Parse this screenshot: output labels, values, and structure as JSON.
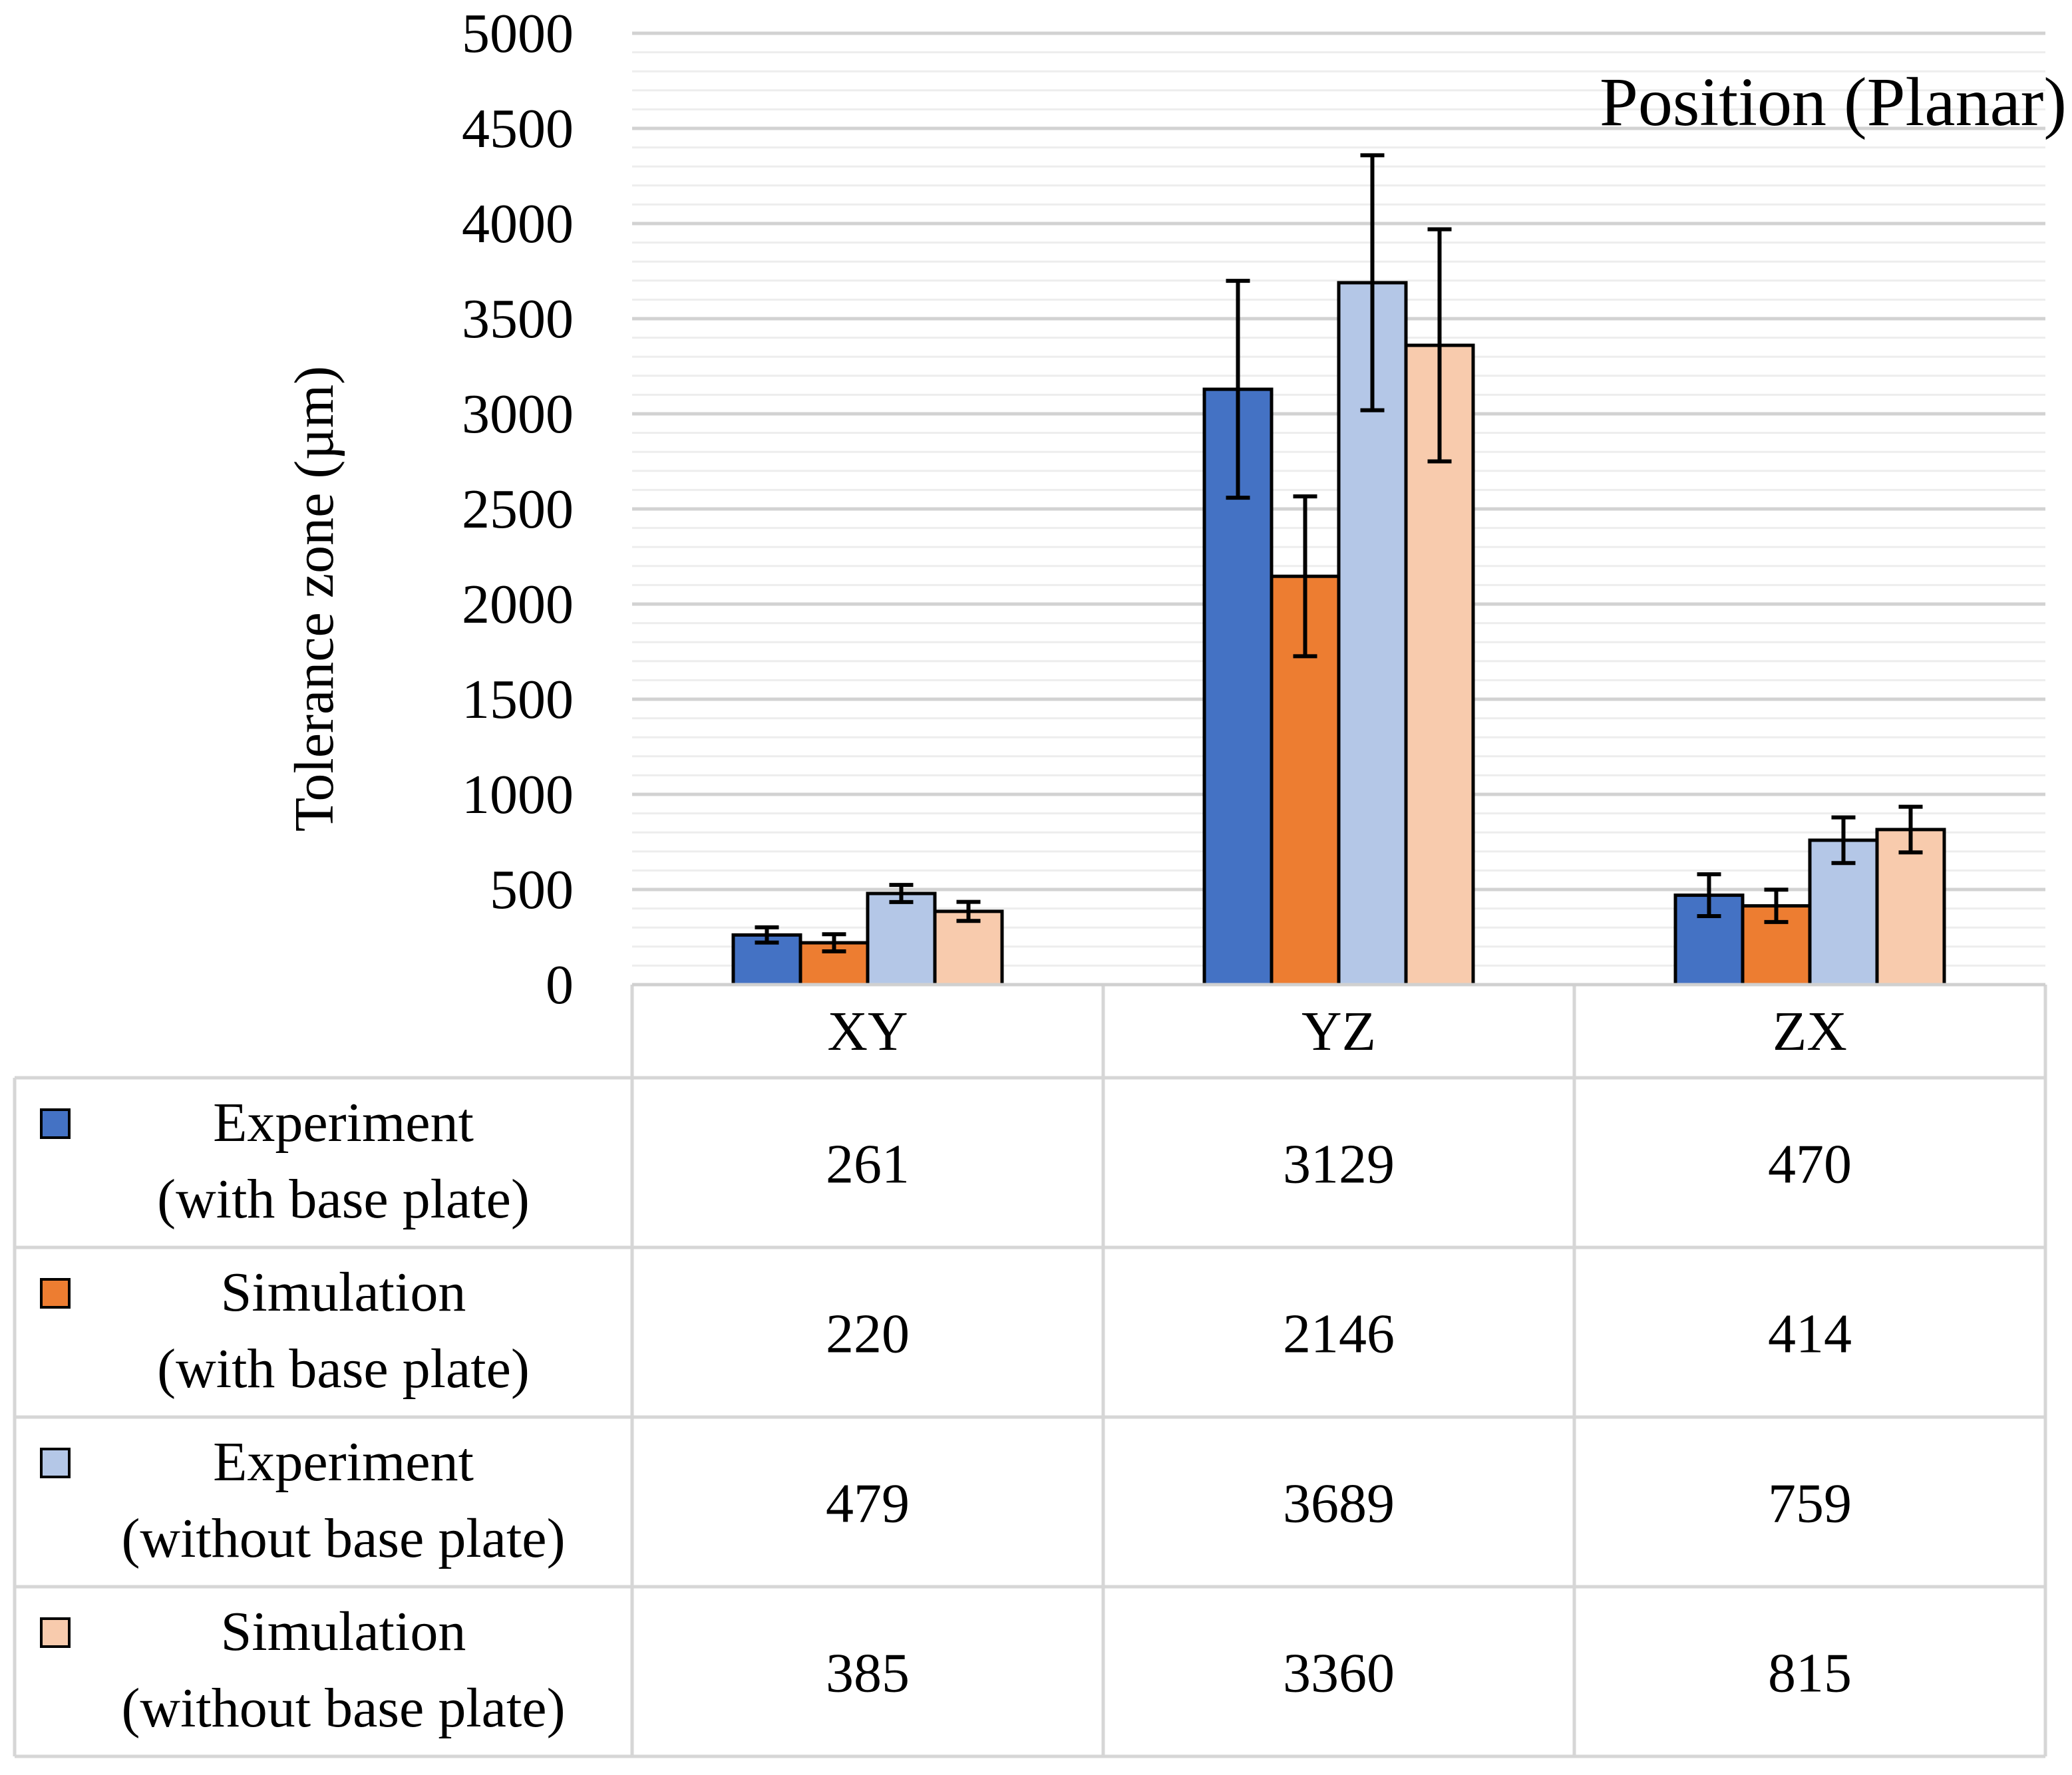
{
  "chart_data": {
    "type": "bar",
    "title": "Position (Planar)",
    "ylabel": "Tolerance zone (µm)",
    "xlabel": "",
    "ylim": [
      0,
      5000
    ],
    "yticks": [
      "0",
      "500",
      "1000",
      "1500",
      "2000",
      "2500",
      "3000",
      "3500",
      "4000",
      "4500",
      "5000"
    ],
    "minor_gridlines_step": 100,
    "categories": [
      "XY",
      "YZ",
      "ZX"
    ],
    "series": [
      {
        "name": "Experiment\n(with base plate)",
        "line1": "Experiment",
        "line2": "(with base plate)",
        "color": "#4472C4",
        "values": [
          261,
          3129,
          470
        ],
        "errors": [
          40,
          570,
          110
        ]
      },
      {
        "name": "Simulation\n(with base plate)",
        "line1": "Simulation",
        "line2": "(with base plate)",
        "color": "#ED7D31",
        "values": [
          220,
          2146,
          414
        ],
        "errors": [
          45,
          420,
          85
        ]
      },
      {
        "name": "Experiment\n(without base plate)",
        "line1": "Experiment",
        "line2": "(without base plate)",
        "color": "#B4C7E7",
        "values": [
          479,
          3689,
          759
        ],
        "errors": [
          45,
          670,
          120
        ]
      },
      {
        "name": "Simulation\n(without base plate)",
        "line1": "Simulation",
        "line2": "(without base plate)",
        "color": "#F8CBAD",
        "values": [
          385,
          3360,
          815
        ],
        "errors": [
          50,
          610,
          120
        ]
      }
    ],
    "data_table": true,
    "grid": true
  }
}
